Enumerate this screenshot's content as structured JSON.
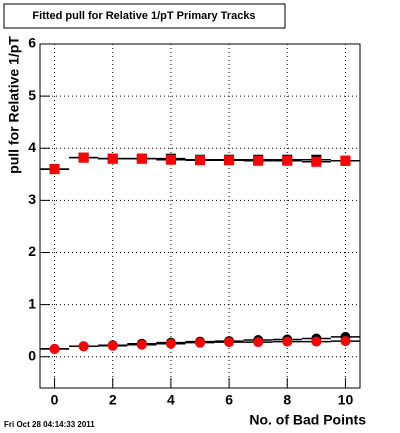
{
  "chart_data": {
    "type": "step-marker",
    "title": "Fitted pull for Relative 1/pT Primary Tracks",
    "x_label": "No. of Bad Points",
    "y_label": "pull for Relative 1/pT",
    "timestamp": "Fri Oct 28 04:14:33 2011",
    "x": [
      0,
      1,
      2,
      3,
      4,
      5,
      6,
      7,
      8,
      9,
      10
    ],
    "xlim": [
      -0.5,
      10.5
    ],
    "ylim": [
      -0.6,
      6
    ],
    "xticks": [
      0,
      2,
      4,
      6,
      8,
      10
    ],
    "yticks": [
      0,
      1,
      2,
      3,
      4,
      5,
      6
    ],
    "grid": true,
    "series": [
      {
        "color": "#000000",
        "marker": "square",
        "values": [
          3.6,
          3.82,
          3.8,
          3.8,
          3.8,
          3.78,
          3.78,
          3.78,
          3.78,
          3.78,
          3.76
        ]
      },
      {
        "color": "#ff0000",
        "marker": "square",
        "values": [
          3.6,
          3.82,
          3.8,
          3.8,
          3.78,
          3.77,
          3.77,
          3.76,
          3.76,
          3.74,
          3.76
        ]
      },
      {
        "color": "#000000",
        "marker": "circle",
        "values": [
          0.15,
          0.2,
          0.22,
          0.25,
          0.27,
          0.29,
          0.3,
          0.32,
          0.33,
          0.35,
          0.38
        ]
      },
      {
        "color": "#ff0000",
        "marker": "circle",
        "values": [
          0.15,
          0.2,
          0.21,
          0.23,
          0.25,
          0.27,
          0.28,
          0.28,
          0.29,
          0.29,
          0.3
        ]
      }
    ]
  }
}
